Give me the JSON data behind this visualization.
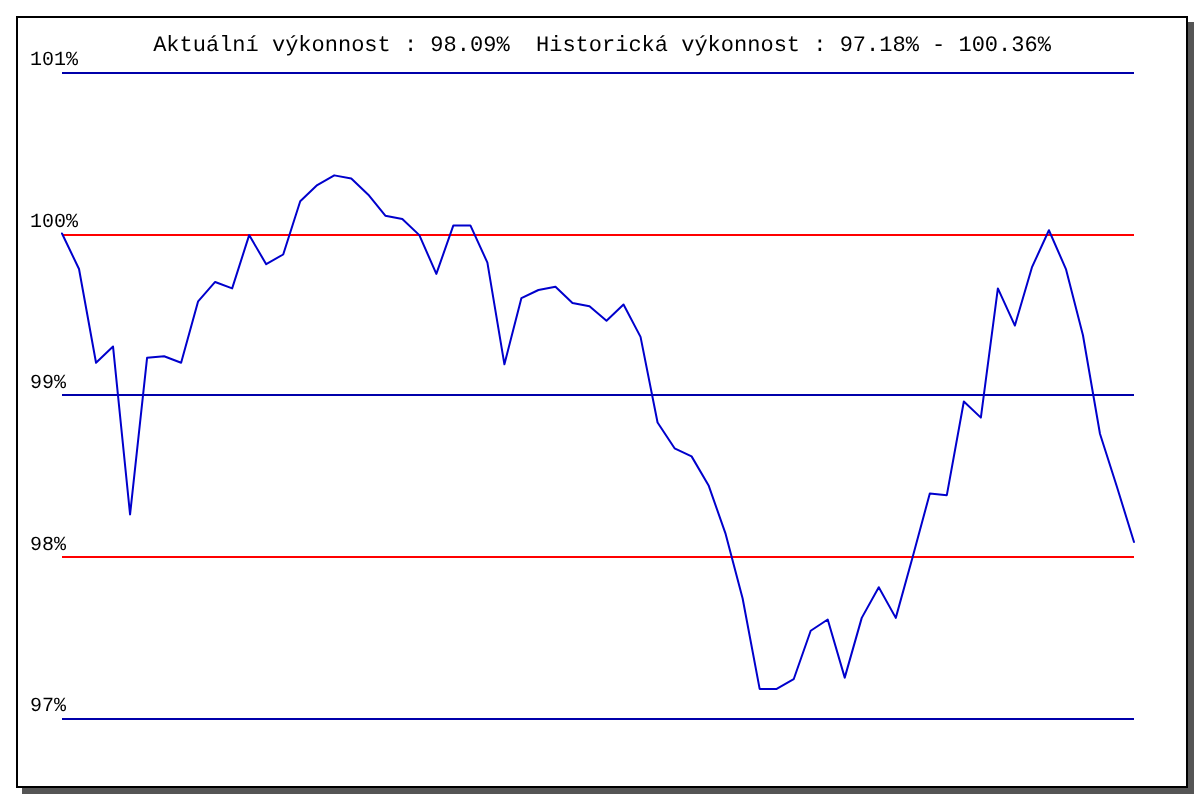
{
  "chart_data": {
    "type": "line",
    "title": "Aktuální výkonnost : 98.09%  Historická výkonnost : 97.18% - 100.36%",
    "categories": [
      null,
      null,
      null,
      null,
      null,
      null,
      null,
      null,
      null,
      null,
      null,
      null,
      null,
      null,
      null,
      null,
      null,
      null,
      null,
      null,
      null,
      null,
      null,
      null,
      null,
      null,
      null,
      null,
      null,
      null,
      null,
      null,
      null,
      null,
      null,
      null,
      null,
      null,
      null,
      null,
      null,
      null,
      null,
      null,
      null,
      null,
      null,
      null,
      null,
      null,
      null,
      null,
      null,
      null,
      null,
      null,
      null,
      null,
      null,
      null,
      null,
      null,
      null,
      null
    ],
    "series": [
      {
        "color": "#0000cc",
        "values": [
          100.0,
          99.78,
          99.2,
          99.3,
          98.26,
          99.23,
          99.24,
          99.2,
          99.58,
          99.7,
          99.66,
          99.99,
          99.81,
          99.87,
          100.2,
          100.3,
          100.36,
          100.34,
          100.24,
          100.11,
          100.09,
          99.99,
          99.75,
          100.05,
          100.05,
          99.82,
          99.19,
          99.6,
          99.65,
          99.67,
          99.57,
          99.55,
          99.46,
          99.56,
          99.36,
          98.83,
          98.67,
          98.62,
          98.44,
          98.14,
          97.74,
          97.18,
          97.18,
          97.24,
          97.54,
          97.61,
          97.25,
          97.62,
          97.81,
          97.62,
          98.0,
          98.39,
          98.38,
          98.96,
          98.86,
          99.66,
          99.43,
          99.79,
          100.02,
          99.78,
          99.37,
          98.76,
          98.43,
          98.09
        ]
      }
    ],
    "ylim": [
      97,
      101
    ],
    "yticks": [
      {
        "value": 97,
        "label": "97%"
      },
      {
        "value": 98,
        "label": "98%"
      },
      {
        "value": 99,
        "label": "99%"
      },
      {
        "value": 100,
        "label": "100%"
      },
      {
        "value": 101,
        "label": "101%"
      }
    ],
    "grid": false,
    "marker": "none",
    "line_style": "solid",
    "ref_lines": [
      {
        "axis": "y",
        "value": 97,
        "color": "#0000aa"
      },
      {
        "axis": "y",
        "value": 98,
        "color": "#ff0000"
      },
      {
        "axis": "y",
        "value": 99,
        "color": "#0000aa"
      },
      {
        "axis": "y",
        "value": 100,
        "color": "#ff0000"
      },
      {
        "axis": "y",
        "value": 101,
        "color": "#0000aa"
      }
    ]
  }
}
